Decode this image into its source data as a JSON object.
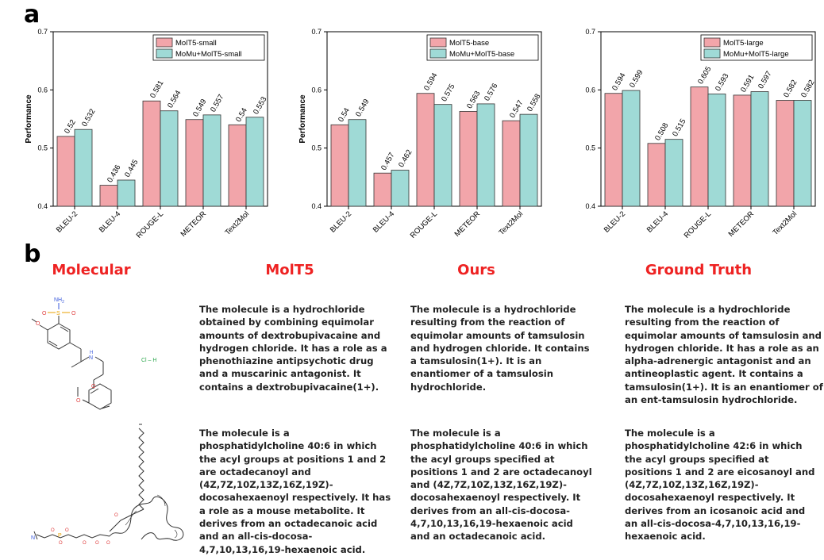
{
  "panel_a_label": "a",
  "panel_b_label": "b",
  "colors": {
    "baseline": "#f2a5aa",
    "momu": "#9fdad6",
    "headers": "#ee2222"
  },
  "chart_data": [
    {
      "type": "bar",
      "ylabel": "Performance",
      "ylim": [
        0.4,
        0.7
      ],
      "yticks": [
        "0.4",
        "0.5",
        "0.6",
        "0.7"
      ],
      "categories": [
        "BLEU-2",
        "BLEU-4",
        "ROUGE-L",
        "METEOR",
        "Text2Mol"
      ],
      "series": [
        {
          "name": "MolT5-small",
          "values": [
            0.52,
            0.436,
            0.581,
            0.549,
            0.54
          ],
          "labels": [
            "0.52",
            "0.436",
            "0.581",
            "0.549",
            "0.54"
          ],
          "color": "#f2a5aa"
        },
        {
          "name": "MoMu+MolT5-small",
          "values": [
            0.532,
            0.445,
            0.564,
            0.557,
            0.553
          ],
          "labels": [
            "0.532",
            "0.445",
            "0.564",
            "0.557",
            "0.553"
          ],
          "color": "#9fdad6"
        }
      ],
      "legend": "top-right"
    },
    {
      "type": "bar",
      "ylabel": "Performance",
      "ylim": [
        0.4,
        0.7
      ],
      "yticks": [
        "0.4",
        "0.5",
        "0.6",
        "0.7"
      ],
      "categories": [
        "BLEU-2",
        "BLEU-4",
        "ROUGE-L",
        "METEOR",
        "Text2Mol"
      ],
      "series": [
        {
          "name": "MolT5-base",
          "values": [
            0.54,
            0.457,
            0.594,
            0.563,
            0.547
          ],
          "labels": [
            "0.54",
            "0.457",
            "0.594",
            "0.563",
            "0.547"
          ],
          "color": "#f2a5aa"
        },
        {
          "name": "MoMu+MolT5-base",
          "values": [
            0.549,
            0.462,
            0.575,
            0.576,
            0.558
          ],
          "labels": [
            "0.549",
            "0.462",
            "0.575",
            "0.576",
            "0.558"
          ],
          "color": "#9fdad6"
        }
      ],
      "legend": "top-right"
    },
    {
      "type": "bar",
      "ylabel": "",
      "ylim": [
        0.4,
        0.7
      ],
      "yticks": [
        "0.4",
        "0.5",
        "0.6",
        "0.7"
      ],
      "categories": [
        "BLEU-2",
        "BLEU-4",
        "ROUGE-L",
        "METEOR",
        "Text2Mol"
      ],
      "series": [
        {
          "name": "MolT5-large",
          "values": [
            0.594,
            0.508,
            0.605,
            0.591,
            0.582
          ],
          "labels": [
            "0.594",
            "0.508",
            "0.605",
            "0.591",
            "0.582"
          ],
          "color": "#f2a5aa"
        },
        {
          "name": "MoMu+MolT5-large",
          "values": [
            0.599,
            0.515,
            0.593,
            0.597,
            0.582
          ],
          "labels": [
            "0.599",
            "0.515",
            "0.593",
            "0.597",
            "0.582"
          ],
          "color": "#9fdad6"
        }
      ],
      "legend": "top-right"
    }
  ],
  "table": {
    "headers": [
      "Molecular",
      "MolT5",
      "Ours",
      "Ground Truth"
    ],
    "molecule_labels": {
      "nh2": "NH",
      "nh2_sub": "2",
      "s": "S",
      "o": "O",
      "n": "N",
      "h": "H",
      "hcl": "Cl – H",
      "n_plus": "N",
      "p": "P"
    },
    "rows": [
      {
        "molt5": "The molecule is a hydrochloride\nobtained by combining equimolar\namounts of dextrobupivacaine and\nhydrogen chloride. It has a role as a\nphenothiazine antipsychotic drug\nand a muscarinic antagonist. It\ncontains a dextrobupivacaine(1+).",
        "ours": "The molecule is a hydrochloride\nresulting from the reaction of\nequimolar amounts of tamsulosin\nand hydrogen chloride. It contains\na tamsulosin(1+). It is an\nenantiomer of a tamsulosin\nhydrochloride.",
        "truth": "The molecule is a hydrochloride\nresulting from the reaction of\nequimolar amounts of tamsulosin and\nhydrogen chloride. It has a role as an\nalpha-adrenergic antagonist and an\nantineoplastic agent. It contains a\ntamsulosin(1+). It is an enantiomer of\nan ent-tamsulosin hydrochloride."
      },
      {
        "molt5": "The molecule is a\nphosphatidylcholine 40:6 in which\nthe acyl groups at positions 1 and 2\nare octadecanoyl and\n(4Z,7Z,10Z,13Z,16Z,19Z)-\ndocosahexaenoyl respectively. It has\na role as a mouse metabolite. It\nderives from an octadecanoic acid\nand an all-cis-docosa-\n4,7,10,13,16,19-hexaenoic acid.",
        "ours": "The molecule is a\nphosphatidylcholine 40:6 in which\nthe acyl groups specified at\npositions 1 and 2 are octadecanoyl\nand (4Z,7Z,10Z,13Z,16Z,19Z)-\ndocosahexaenoyl respectively. It\nderives from an all-cis-docosa-\n4,7,10,13,16,19-hexaenoic acid\nand an octadecanoic acid.",
        "truth": "The molecule is a\nphosphatidylcholine 42:6 in which\nthe acyl groups specified at\npositions 1 and 2 are eicosanoyl and\n(4Z,7Z,10Z,13Z,16Z,19Z)-\ndocosahexaenoyl respectively. It\nderives from an icosanoic acid and\nan all-cis-docosa-4,7,10,13,16,19-\nhexaenoic acid."
      }
    ]
  }
}
